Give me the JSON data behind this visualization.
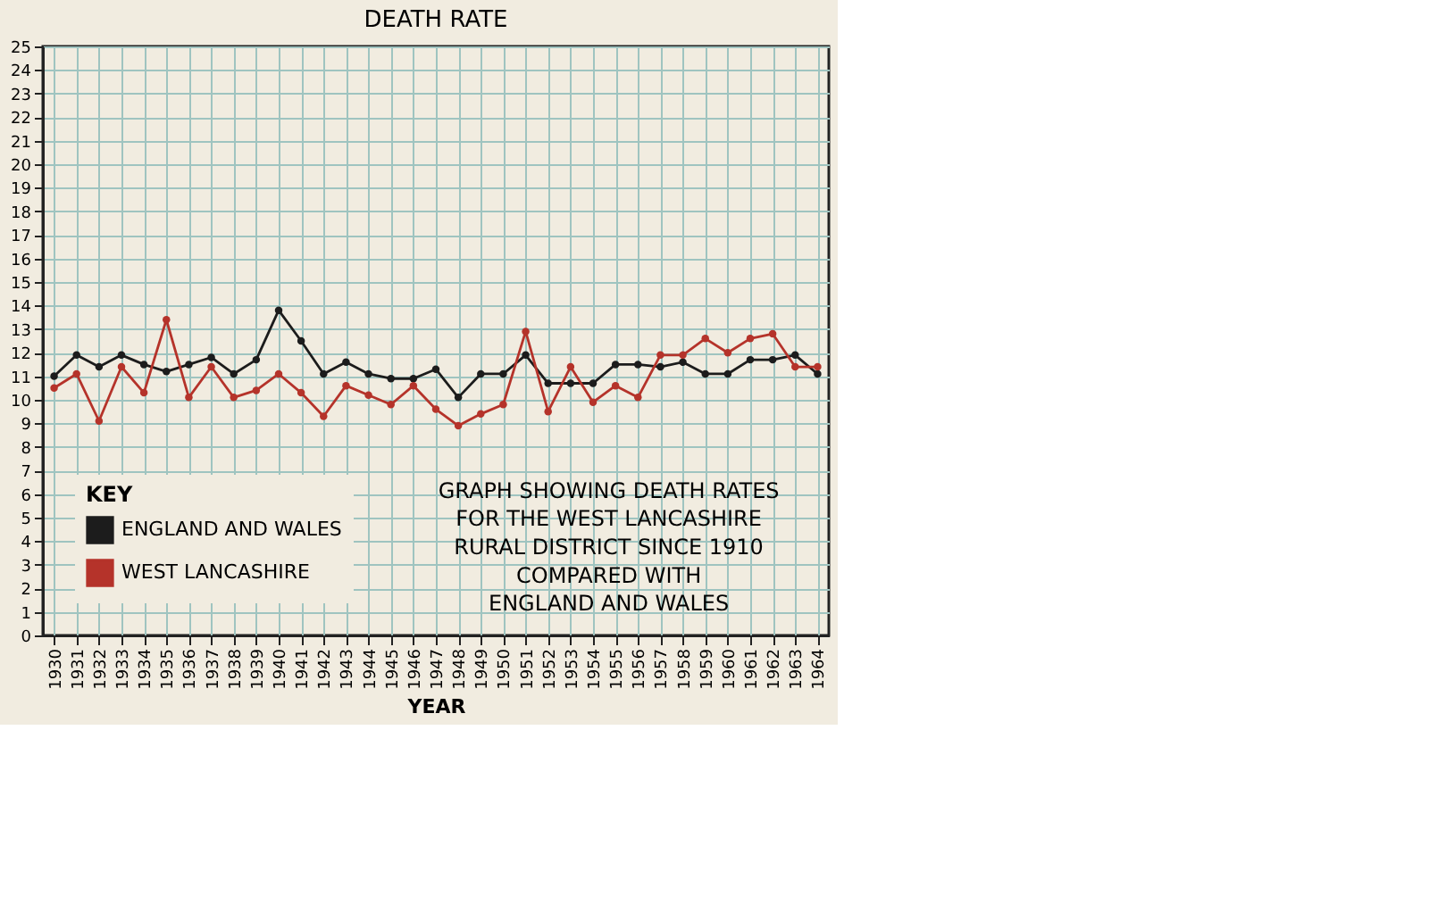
{
  "chart_data": {
    "type": "line",
    "title": "DEATH RATE",
    "xlabel": "YEAR",
    "categories": [
      "1930",
      "1931",
      "1932",
      "1933",
      "1934",
      "1935",
      "1936",
      "1937",
      "1938",
      "1939",
      "1940",
      "1941",
      "1942",
      "1943",
      "1944",
      "1945",
      "1946",
      "1947",
      "1948",
      "1949",
      "1950",
      "1951",
      "1952",
      "1953",
      "1954",
      "1955",
      "1956",
      "1957",
      "1958",
      "1959",
      "1960",
      "1961",
      "1962",
      "1963",
      "1964"
    ],
    "series": [
      {
        "name": "ENGLAND AND WALES",
        "color": "#1c1c1c",
        "values": [
          11.0,
          11.9,
          11.4,
          11.9,
          11.5,
          11.2,
          11.5,
          11.8,
          11.1,
          11.7,
          13.8,
          12.5,
          11.1,
          11.6,
          11.1,
          10.9,
          10.9,
          11.3,
          10.1,
          11.1,
          11.1,
          11.9,
          10.7,
          10.7,
          10.7,
          11.5,
          11.5,
          11.4,
          11.6,
          11.1,
          11.1,
          11.7,
          11.7,
          11.9,
          11.1
        ]
      },
      {
        "name": "WEST LANCASHIRE",
        "color": "#b5332a",
        "values": [
          10.5,
          11.1,
          9.1,
          11.4,
          10.3,
          13.4,
          10.1,
          11.4,
          10.1,
          10.4,
          11.1,
          10.3,
          9.3,
          10.6,
          10.2,
          9.8,
          10.6,
          9.6,
          8.9,
          9.4,
          9.8,
          12.9,
          9.5,
          11.4,
          9.9,
          10.6,
          10.1,
          11.9,
          11.9,
          12.6,
          12.0,
          12.6,
          12.8,
          11.4,
          11.4
        ]
      }
    ],
    "ylim": [
      0,
      25
    ],
    "yticks": [
      0,
      1,
      2,
      3,
      4,
      5,
      6,
      7,
      8,
      9,
      10,
      11,
      12,
      13,
      14,
      15,
      16,
      17,
      18,
      19,
      20,
      21,
      22,
      23,
      24,
      25
    ],
    "grid": true,
    "legend": "bottom left",
    "legend_title": "KEY",
    "marker": "circle",
    "line_style": "solid",
    "annotations": [
      "GRAPH SHOWING DEATH RATES",
      "FOR THE WEST LANCASHIRE",
      "RURAL DISTRICT SINCE 1910",
      "COMPARED WITH",
      "ENGLAND AND WALES"
    ]
  }
}
